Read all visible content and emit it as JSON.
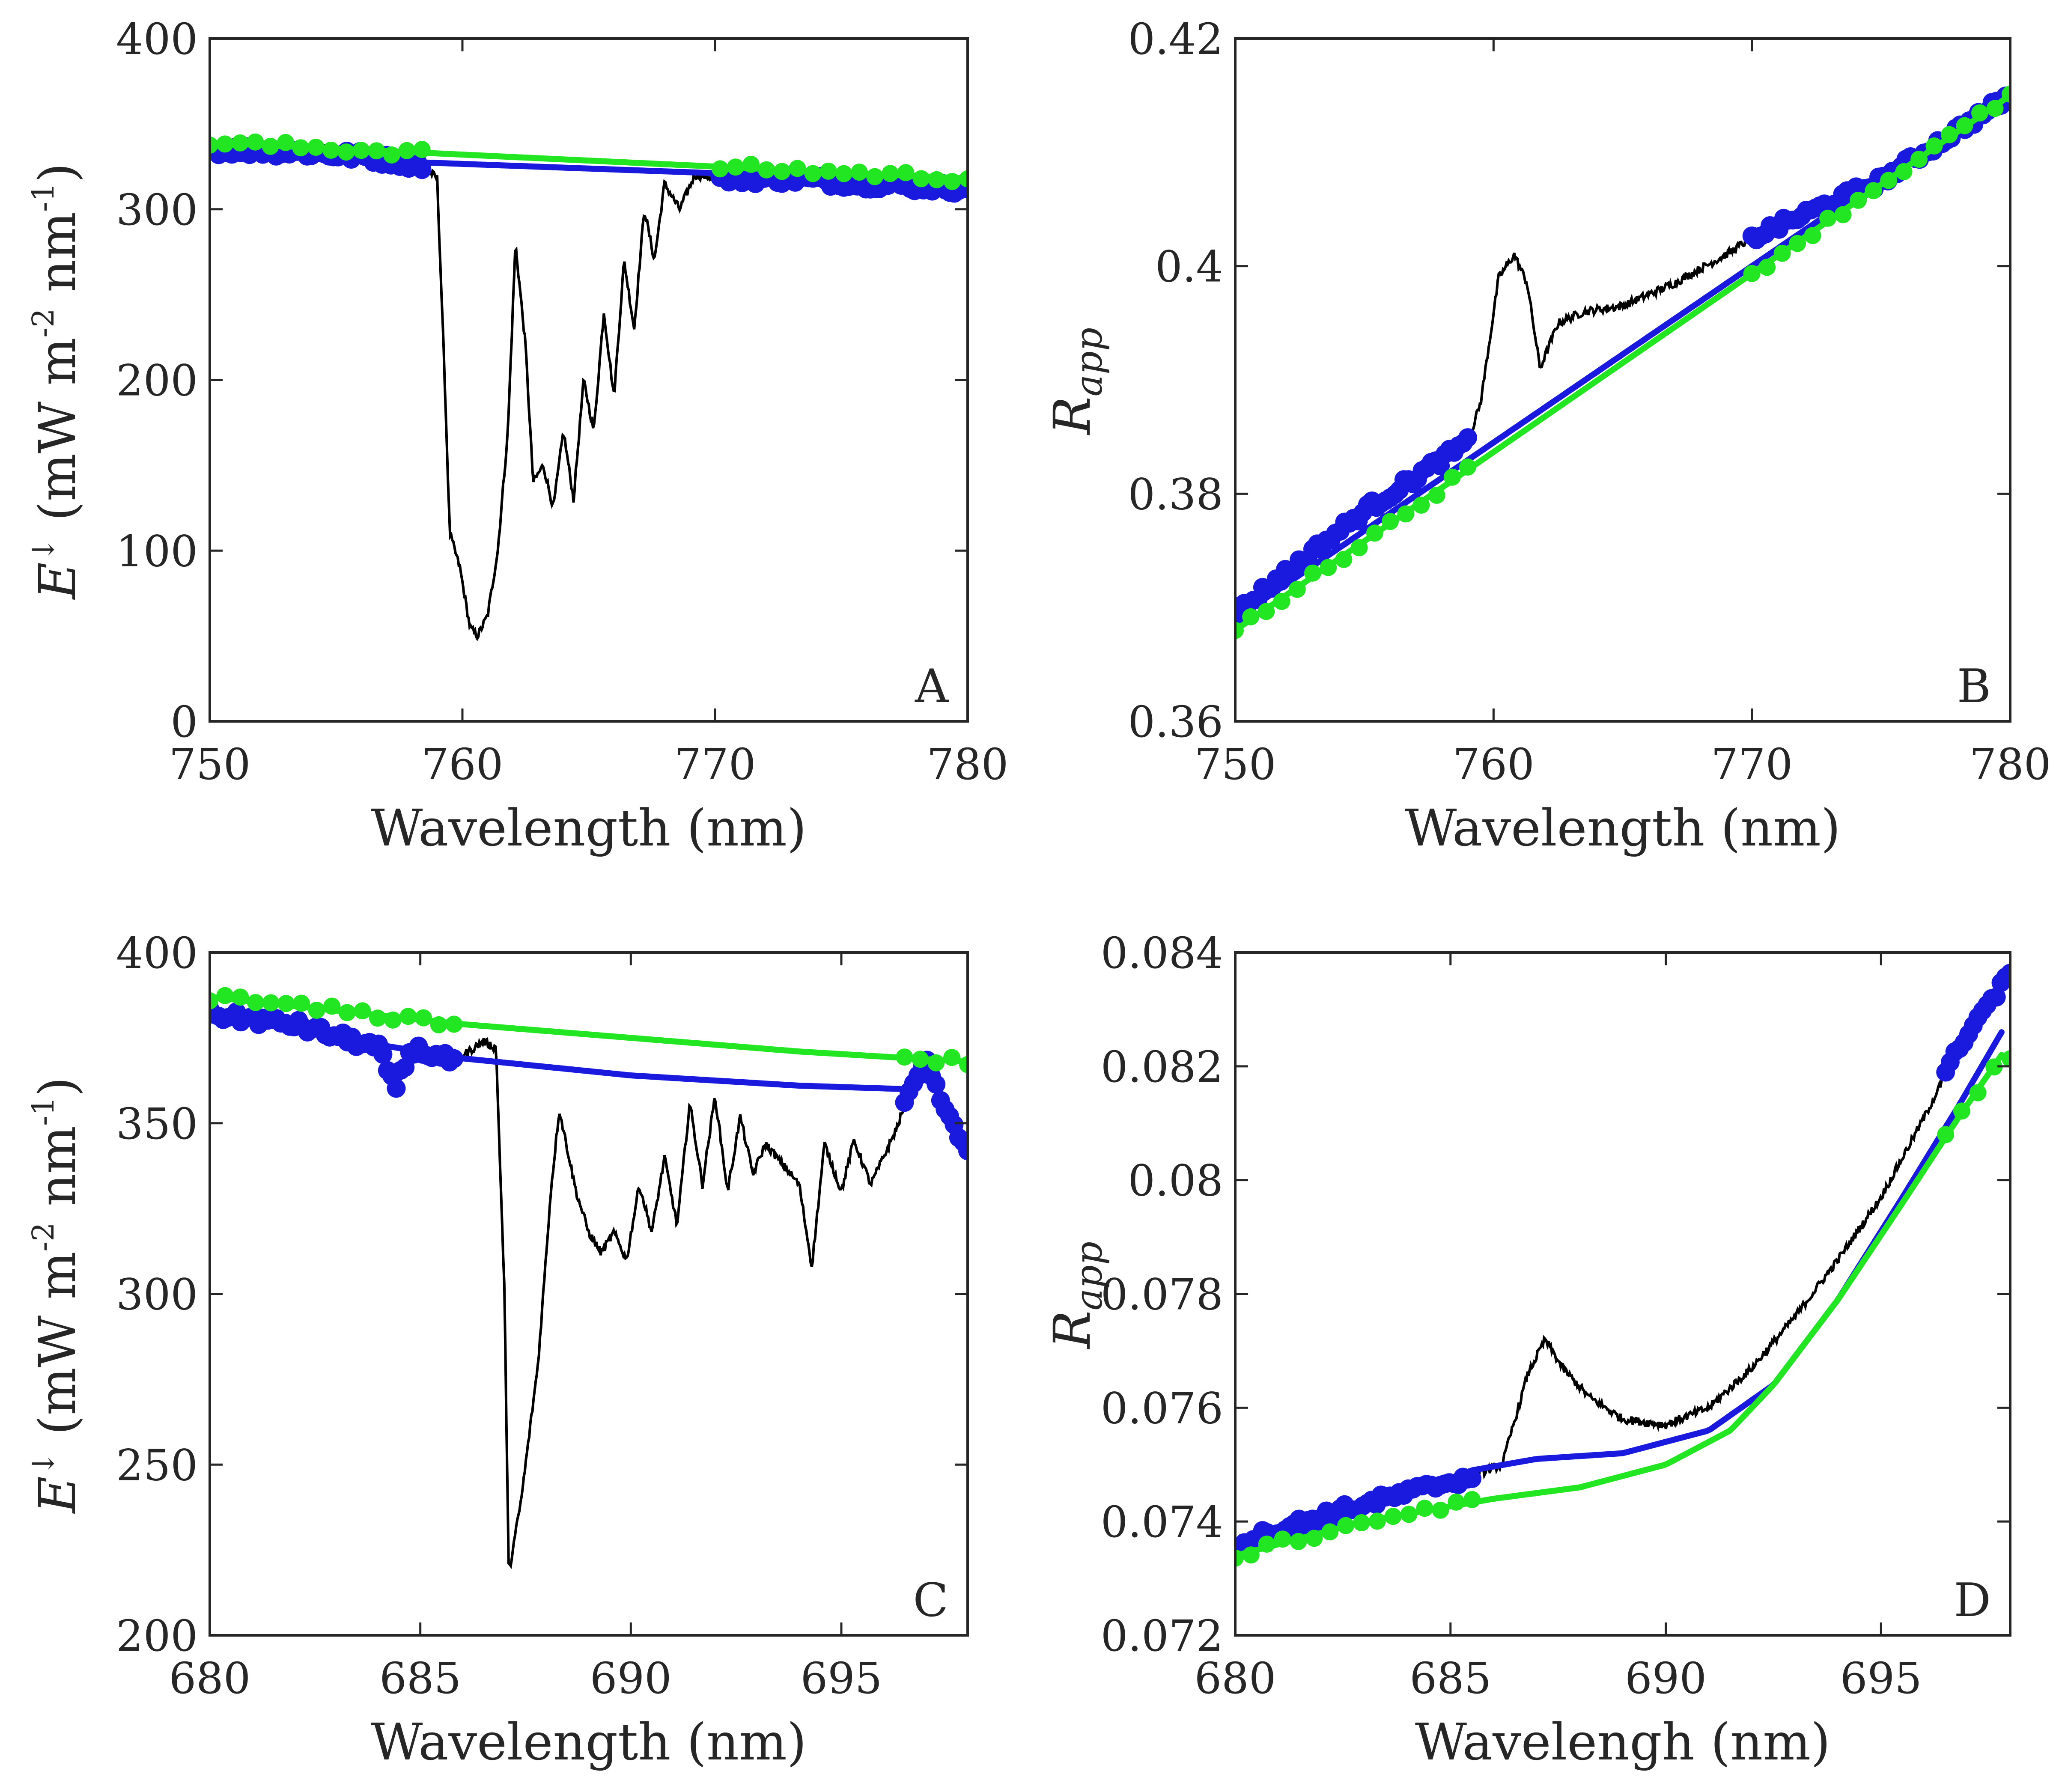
{
  "colors": {
    "measured": "#000000",
    "blue": "#1a1adf",
    "green": "#22e622",
    "axis": "#262626"
  },
  "chart_data": [
    {
      "id": "A",
      "type": "line",
      "panel_label": "A",
      "xlabel": "Wavelength (nm)",
      "ylabel_main": "E",
      "ylabel_sup": "↓",
      "ylabel_unit": "(mW m",
      "ylabel_unit_sup1": "-2",
      "ylabel_unit_mid": " nm",
      "ylabel_unit_sup2": "-1",
      "ylabel_unit_end": ")",
      "xlim": [
        750,
        780
      ],
      "ylim": [
        0,
        400
      ],
      "xticks": [
        "750",
        "760",
        "770",
        "780"
      ],
      "xtick_values": [
        750,
        760,
        770,
        780
      ],
      "yticks": [
        "0",
        "100",
        "200",
        "300",
        "400"
      ],
      "ytick_values": [
        0,
        100,
        200,
        300,
        400
      ],
      "shoulders": [
        [
          750,
          758.4
        ],
        [
          770.2,
          780
        ]
      ],
      "series": [
        {
          "name": "measured",
          "color": "#000000",
          "keypoints": [
            [
              750,
              335
            ],
            [
              753,
              334
            ],
            [
              756,
              331
            ],
            [
              758.4,
              326
            ],
            [
              759.0,
              318
            ],
            [
              759.3,
              200
            ],
            [
              759.5,
              110
            ],
            [
              759.9,
              90
            ],
            [
              760.3,
              55
            ],
            [
              760.6,
              50
            ],
            [
              761.0,
              62
            ],
            [
              761.4,
              100
            ],
            [
              761.8,
              170
            ],
            [
              762.1,
              280
            ],
            [
              762.5,
              220
            ],
            [
              762.8,
              140
            ],
            [
              763.2,
              150
            ],
            [
              763.6,
              125
            ],
            [
              764.0,
              170
            ],
            [
              764.4,
              130
            ],
            [
              764.8,
              200
            ],
            [
              765.2,
              170
            ],
            [
              765.6,
              240
            ],
            [
              766.0,
              190
            ],
            [
              766.4,
              270
            ],
            [
              766.8,
              230
            ],
            [
              767.2,
              300
            ],
            [
              767.6,
              270
            ],
            [
              768.0,
              315
            ],
            [
              768.6,
              300
            ],
            [
              769.2,
              320
            ],
            [
              770.2,
              318
            ],
            [
              773,
              318
            ],
            [
              776,
              315
            ],
            [
              780,
              312
            ]
          ]
        },
        {
          "name": "blue fit",
          "color": "#1a1adf",
          "line": [
            [
              750,
              332
            ],
            [
              770.2,
              321
            ]
          ]
        },
        {
          "name": "green fit",
          "color": "#22e622",
          "line": [
            [
              750,
              339
            ],
            [
              780,
              318
            ]
          ]
        }
      ]
    },
    {
      "id": "B",
      "type": "line",
      "panel_label": "B",
      "xlabel": "Wavelength (nm)",
      "ylabel_main": "R",
      "ylabel_sub": "app",
      "xlim": [
        750,
        780
      ],
      "ylim": [
        0.36,
        0.42
      ],
      "xticks": [
        "750",
        "760",
        "770",
        "780"
      ],
      "xtick_values": [
        750,
        760,
        770,
        780
      ],
      "yticks": [
        "0.36",
        "0.38",
        "0.4",
        "0.42"
      ],
      "ytick_values": [
        0.36,
        0.38,
        0.4,
        0.42
      ],
      "shoulders": [
        [
          750,
          759
        ],
        [
          770,
          780
        ]
      ],
      "series": [
        {
          "name": "measured",
          "color": "#000000",
          "keypoints": [
            [
              750,
              0.3695
            ],
            [
              755,
              0.3785
            ],
            [
              759,
              0.3845
            ],
            [
              759.5,
              0.388
            ],
            [
              760.2,
              0.399
            ],
            [
              760.8,
              0.401
            ],
            [
              761.3,
              0.3985
            ],
            [
              761.8,
              0.391
            ],
            [
              762.5,
              0.395
            ],
            [
              763.5,
              0.396
            ],
            [
              765,
              0.3965
            ],
            [
              767,
              0.3985
            ],
            [
              769,
              0.401
            ],
            [
              770,
              0.4025
            ],
            [
              775,
              0.4075
            ],
            [
              780,
              0.415
            ]
          ]
        },
        {
          "name": "blue fit",
          "color": "#1a1adf",
          "line": [
            [
              750,
              0.369
            ],
            [
              780,
              0.4155
            ]
          ]
        },
        {
          "name": "green fit",
          "color": "#22e622",
          "line": [
            [
              750,
              0.368
            ],
            [
              780,
              0.415
            ]
          ]
        }
      ]
    },
    {
      "id": "C",
      "type": "line",
      "panel_label": "C",
      "xlabel": "Wavelength (nm)",
      "ylabel_main": "E",
      "ylabel_sup": "↓",
      "ylabel_unit": "(mW m",
      "ylabel_unit_sup1": "-2",
      "ylabel_unit_mid": " nm",
      "ylabel_unit_sup2": "-1",
      "ylabel_unit_end": ")",
      "xlim": [
        680,
        698
      ],
      "ylim": [
        200,
        400
      ],
      "xticks": [
        "680",
        "685",
        "690",
        "695"
      ],
      "xtick_values": [
        680,
        685,
        690,
        695
      ],
      "yticks": [
        "200",
        "250",
        "300",
        "350",
        "400"
      ],
      "ytick_values": [
        200,
        250,
        300,
        350,
        400
      ],
      "shoulders": [
        [
          680,
          685.8
        ],
        [
          696.5,
          698
        ]
      ],
      "series": [
        {
          "name": "measured",
          "color": "#000000",
          "keypoints": [
            [
              680,
              382
            ],
            [
              682,
              379
            ],
            [
              684,
              372
            ],
            [
              684.4,
              360
            ],
            [
              684.8,
              372
            ],
            [
              685.8,
              368
            ],
            [
              686.5,
              374
            ],
            [
              686.8,
              372
            ],
            [
              687.0,
              300
            ],
            [
              687.1,
              218
            ],
            [
              687.4,
              240
            ],
            [
              687.8,
              280
            ],
            [
              688.1,
              330
            ],
            [
              688.3,
              354
            ],
            [
              688.7,
              330
            ],
            [
              689.0,
              318
            ],
            [
              689.3,
              312
            ],
            [
              689.6,
              318
            ],
            [
              689.9,
              310
            ],
            [
              690.2,
              332
            ],
            [
              690.5,
              318
            ],
            [
              690.8,
              340
            ],
            [
              691.1,
              320
            ],
            [
              691.4,
              356
            ],
            [
              691.7,
              332
            ],
            [
              692.0,
              358
            ],
            [
              692.3,
              330
            ],
            [
              692.6,
              352
            ],
            [
              692.9,
              335
            ],
            [
              693.2,
              344
            ],
            [
              693.6,
              338
            ],
            [
              694.0,
              332
            ],
            [
              694.3,
              308
            ],
            [
              694.6,
              344
            ],
            [
              695.0,
              330
            ],
            [
              695.3,
              345
            ],
            [
              695.7,
              332
            ],
            [
              696.0,
              340
            ],
            [
              696.3,
              348
            ],
            [
              696.5,
              355
            ],
            [
              697.0,
              368
            ],
            [
              697.6,
              350
            ],
            [
              698,
              342
            ]
          ]
        },
        {
          "name": "blue fit",
          "color": "#1a1adf",
          "keypoints": [
            [
              680,
              382
            ],
            [
              683,
              375
            ],
            [
              686,
              369
            ],
            [
              690,
              364
            ],
            [
              694,
              361
            ],
            [
              696.5,
              360
            ],
            [
              697.2,
              364
            ]
          ]
        },
        {
          "name": "green fit",
          "color": "#22e622",
          "keypoints": [
            [
              680,
              387
            ],
            [
              683,
              383
            ],
            [
              686,
              379
            ],
            [
              690,
              375
            ],
            [
              694,
              371
            ],
            [
              698,
              368
            ]
          ]
        }
      ]
    },
    {
      "id": "D",
      "type": "line",
      "panel_label": "D",
      "xlabel": "Wavelengh (nm)",
      "ylabel_main": "R",
      "ylabel_sub": "app",
      "xlim": [
        680,
        698
      ],
      "ylim": [
        0.072,
        0.084
      ],
      "xticks": [
        "680",
        "685",
        "690",
        "695"
      ],
      "xtick_values": [
        680,
        685,
        690,
        695
      ],
      "yticks": [
        "0.072",
        "0.074",
        "0.076",
        "0.078",
        "0.08",
        "0.082",
        "0.084"
      ],
      "ytick_values": [
        0.072,
        0.074,
        0.076,
        0.078,
        0.08,
        0.082,
        0.084
      ],
      "shoulders": [
        [
          680,
          685.5
        ],
        [
          696.5,
          698
        ]
      ],
      "series": [
        {
          "name": "measured",
          "color": "#000000",
          "keypoints": [
            [
              680,
              0.0736
            ],
            [
              682,
              0.0741
            ],
            [
              684,
              0.0745
            ],
            [
              685.5,
              0.0748
            ],
            [
              686.2,
              0.075
            ],
            [
              686.8,
              0.0766
            ],
            [
              687.2,
              0.0772
            ],
            [
              687.6,
              0.0767
            ],
            [
              688.2,
              0.0762
            ],
            [
              689,
              0.0758
            ],
            [
              690,
              0.0757
            ],
            [
              691,
              0.076
            ],
            [
              692,
              0.0767
            ],
            [
              693,
              0.0776
            ],
            [
              694,
              0.0786
            ],
            [
              695,
              0.0797
            ],
            [
              696,
              0.0811
            ],
            [
              697,
              0.0826
            ],
            [
              698,
              0.0836
            ]
          ]
        },
        {
          "name": "blue fit",
          "color": "#1a1adf",
          "keypoints": [
            [
              680,
              0.0734
            ],
            [
              683,
              0.0742
            ],
            [
              685.5,
              0.0749
            ],
            [
              687,
              0.0751
            ],
            [
              689,
              0.0752
            ],
            [
              691,
              0.0756
            ],
            [
              692.5,
              0.0764
            ],
            [
              694,
              0.0779
            ],
            [
              695.5,
              0.0797
            ],
            [
              696.8,
              0.0813
            ],
            [
              697.8,
              0.0826
            ]
          ]
        },
        {
          "name": "green fit",
          "color": "#22e622",
          "keypoints": [
            [
              680,
              0.0734
            ],
            [
              683,
              0.074
            ],
            [
              686,
              0.0744
            ],
            [
              688,
              0.0746
            ],
            [
              690,
              0.075
            ],
            [
              691.5,
              0.0756
            ],
            [
              692.5,
              0.0764
            ],
            [
              694,
              0.0779
            ],
            [
              695.5,
              0.0796
            ],
            [
              696.8,
              0.0811
            ],
            [
              697.8,
              0.0822
            ]
          ]
        }
      ]
    }
  ]
}
